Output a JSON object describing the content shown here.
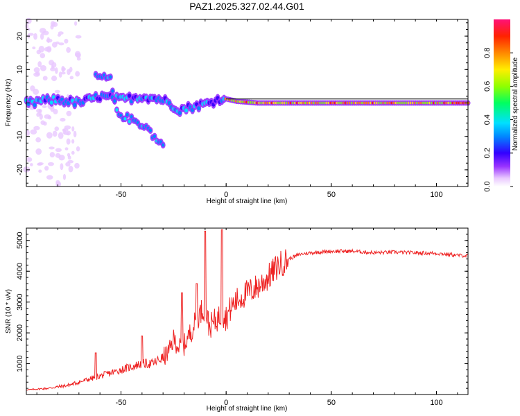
{
  "title": "PAZ1.2025.327.02.44.G01",
  "chart_data": [
    {
      "type": "heatmap",
      "name": "spectrogram",
      "xlabel": "Height of straight line (km)",
      "ylabel": "Frequency (Hz)",
      "xlim": [
        -95,
        115
      ],
      "ylim": [
        -25,
        25
      ],
      "xticks": [
        -50,
        0,
        50,
        100
      ],
      "yticks": [
        -20,
        -10,
        0,
        10,
        20
      ],
      "colorbar": {
        "label": "Normalized spectral amplitude",
        "range": [
          0,
          1
        ],
        "ticks": [
          "0.0",
          "0.2",
          "0.4",
          "0.6",
          "0.8"
        ],
        "tick_values": [
          0.0,
          0.2,
          0.4,
          0.6,
          0.8
        ]
      },
      "ridge": [
        {
          "x": -90,
          "y": 0.5
        },
        {
          "x": -80,
          "y": 1
        },
        {
          "x": -70,
          "y": 0
        },
        {
          "x": -60,
          "y": 2
        },
        {
          "x": -50,
          "y": 1
        },
        {
          "x": -40,
          "y": 2
        },
        {
          "x": -30,
          "y": 1
        },
        {
          "x": -22,
          "y": -2
        },
        {
          "x": -15,
          "y": -1
        },
        {
          "x": -8,
          "y": 0
        },
        {
          "x": -2,
          "y": 1.5
        },
        {
          "x": 5,
          "y": 0.5
        },
        {
          "x": 15,
          "y": 0
        },
        {
          "x": 30,
          "y": 0
        },
        {
          "x": 60,
          "y": 0
        },
        {
          "x": 90,
          "y": 0
        },
        {
          "x": 115,
          "y": 0
        }
      ],
      "branch": [
        {
          "x": -62,
          "y": 8
        },
        {
          "x": -55,
          "y": 7
        },
        {
          "x": -52,
          "y": -3
        },
        {
          "x": -45,
          "y": -5
        },
        {
          "x": -38,
          "y": -7
        },
        {
          "x": -32,
          "y": -12
        }
      ]
    },
    {
      "type": "line",
      "name": "snr",
      "xlabel": "Height of straight line (km)",
      "ylabel": "SNR (10 * v/v)",
      "xlim": [
        -95,
        115
      ],
      "ylim": [
        0,
        5400
      ],
      "xticks": [
        -50,
        0,
        50,
        100
      ],
      "yticks": [
        1000,
        2000,
        3000,
        4000,
        5000
      ],
      "series": [
        {
          "name": "SNR",
          "color": "#ee2222",
          "x": [
            -95,
            -85,
            -75,
            -70,
            -65,
            -60,
            -55,
            -50,
            -45,
            -40,
            -35,
            -30,
            -27,
            -25,
            -22,
            -20,
            -17,
            -15,
            -12,
            -10,
            -8,
            -5,
            -2,
            0,
            3,
            6,
            10,
            15,
            20,
            25,
            30,
            35,
            40,
            50,
            60,
            70,
            80,
            90,
            100,
            110,
            115
          ],
          "y": [
            150,
            200,
            300,
            400,
            500,
            600,
            700,
            800,
            900,
            1000,
            1000,
            1200,
            1400,
            1800,
            1500,
            1600,
            2000,
            2300,
            2700,
            2800,
            2200,
            2400,
            2600,
            2500,
            2900,
            3100,
            3300,
            3500,
            3800,
            4200,
            4400,
            4550,
            4600,
            4650,
            4650,
            4600,
            4620,
            4600,
            4580,
            4520,
            4500
          ]
        }
      ],
      "spikes": [
        {
          "x": -21,
          "y": 3300
        },
        {
          "x": -10,
          "y": 5300
        },
        {
          "x": -2,
          "y": 5350
        },
        {
          "x": -14,
          "y": 3600
        },
        {
          "x": -62,
          "y": 1350
        },
        {
          "x": -40,
          "y": 1900
        }
      ]
    }
  ]
}
